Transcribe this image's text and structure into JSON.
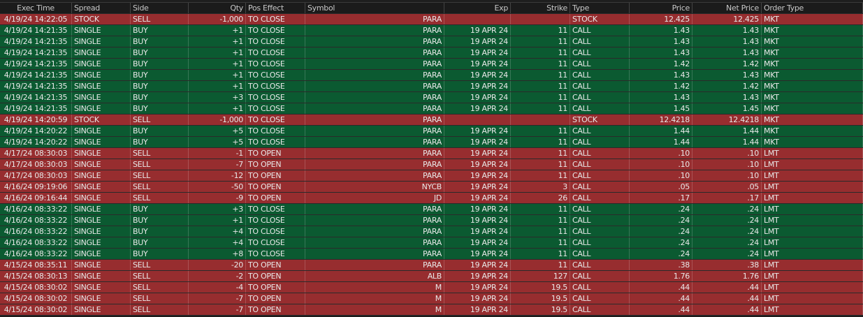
{
  "colors": {
    "sell_row": "#972d2f",
    "buy_row": "#0b5a31",
    "header": "#1b1b1b"
  },
  "columns": [
    "Exec Time",
    "Spread",
    "Side",
    "Qty",
    "Pos Effect",
    "Symbol",
    "Exp",
    "Strike",
    "Type",
    "Price",
    "Net Price",
    "Order Type"
  ],
  "rows": [
    [
      "4/19/24 14:22:05",
      "STOCK",
      "SELL",
      "-1,000",
      "TO CLOSE",
      "PARA",
      "",
      "",
      "STOCK",
      "12.425",
      "12.425",
      "MKT"
    ],
    [
      "4/19/24 14:21:35",
      "SINGLE",
      "BUY",
      "+1",
      "TO CLOSE",
      "PARA",
      "19 APR 24",
      "11",
      "CALL",
      "1.43",
      "1.43",
      "MKT"
    ],
    [
      "4/19/24 14:21:35",
      "SINGLE",
      "BUY",
      "+1",
      "TO CLOSE",
      "PARA",
      "19 APR 24",
      "11",
      "CALL",
      "1.43",
      "1.43",
      "MKT"
    ],
    [
      "4/19/24 14:21:35",
      "SINGLE",
      "BUY",
      "+1",
      "TO CLOSE",
      "PARA",
      "19 APR 24",
      "11",
      "CALL",
      "1.43",
      "1.43",
      "MKT"
    ],
    [
      "4/19/24 14:21:35",
      "SINGLE",
      "BUY",
      "+1",
      "TO CLOSE",
      "PARA",
      "19 APR 24",
      "11",
      "CALL",
      "1.42",
      "1.42",
      "MKT"
    ],
    [
      "4/19/24 14:21:35",
      "SINGLE",
      "BUY",
      "+1",
      "TO CLOSE",
      "PARA",
      "19 APR 24",
      "11",
      "CALL",
      "1.43",
      "1.43",
      "MKT"
    ],
    [
      "4/19/24 14:21:35",
      "SINGLE",
      "BUY",
      "+1",
      "TO CLOSE",
      "PARA",
      "19 APR 24",
      "11",
      "CALL",
      "1.42",
      "1.42",
      "MKT"
    ],
    [
      "4/19/24 14:21:35",
      "SINGLE",
      "BUY",
      "+3",
      "TO CLOSE",
      "PARA",
      "19 APR 24",
      "11",
      "CALL",
      "1.43",
      "1.43",
      "MKT"
    ],
    [
      "4/19/24 14:21:35",
      "SINGLE",
      "BUY",
      "+1",
      "TO CLOSE",
      "PARA",
      "19 APR 24",
      "11",
      "CALL",
      "1.45",
      "1.45",
      "MKT"
    ],
    [
      "4/19/24 14:20:59",
      "STOCK",
      "SELL",
      "-1,000",
      "TO CLOSE",
      "PARA",
      "",
      "",
      "STOCK",
      "12.4218",
      "12.4218",
      "MKT"
    ],
    [
      "4/19/24 14:20:22",
      "SINGLE",
      "BUY",
      "+5",
      "TO CLOSE",
      "PARA",
      "19 APR 24",
      "11",
      "CALL",
      "1.44",
      "1.44",
      "MKT"
    ],
    [
      "4/19/24 14:20:22",
      "SINGLE",
      "BUY",
      "+5",
      "TO CLOSE",
      "PARA",
      "19 APR 24",
      "11",
      "CALL",
      "1.44",
      "1.44",
      "MKT"
    ],
    [
      "4/17/24 08:30:03",
      "SINGLE",
      "SELL",
      "-1",
      "TO OPEN",
      "PARA",
      "19 APR 24",
      "11",
      "CALL",
      ".10",
      ".10",
      "LMT"
    ],
    [
      "4/17/24 08:30:03",
      "SINGLE",
      "SELL",
      "-7",
      "TO OPEN",
      "PARA",
      "19 APR 24",
      "11",
      "CALL",
      ".10",
      ".10",
      "LMT"
    ],
    [
      "4/17/24 08:30:03",
      "SINGLE",
      "SELL",
      "-12",
      "TO OPEN",
      "PARA",
      "19 APR 24",
      "11",
      "CALL",
      ".10",
      ".10",
      "LMT"
    ],
    [
      "4/16/24 09:19:06",
      "SINGLE",
      "SELL",
      "-50",
      "TO OPEN",
      "NYCB",
      "19 APR 24",
      "3",
      "CALL",
      ".05",
      ".05",
      "LMT"
    ],
    [
      "4/16/24 09:16:44",
      "SINGLE",
      "SELL",
      "-9",
      "TO OPEN",
      "JD",
      "19 APR 24",
      "26",
      "CALL",
      ".17",
      ".17",
      "LMT"
    ],
    [
      "4/16/24 08:33:22",
      "SINGLE",
      "BUY",
      "+3",
      "TO CLOSE",
      "PARA",
      "19 APR 24",
      "11",
      "CALL",
      ".24",
      ".24",
      "LMT"
    ],
    [
      "4/16/24 08:33:22",
      "SINGLE",
      "BUY",
      "+1",
      "TO CLOSE",
      "PARA",
      "19 APR 24",
      "11",
      "CALL",
      ".24",
      ".24",
      "LMT"
    ],
    [
      "4/16/24 08:33:22",
      "SINGLE",
      "BUY",
      "+4",
      "TO CLOSE",
      "PARA",
      "19 APR 24",
      "11",
      "CALL",
      ".24",
      ".24",
      "LMT"
    ],
    [
      "4/16/24 08:33:22",
      "SINGLE",
      "BUY",
      "+4",
      "TO CLOSE",
      "PARA",
      "19 APR 24",
      "11",
      "CALL",
      ".24",
      ".24",
      "LMT"
    ],
    [
      "4/16/24 08:33:22",
      "SINGLE",
      "BUY",
      "+8",
      "TO CLOSE",
      "PARA",
      "19 APR 24",
      "11",
      "CALL",
      ".24",
      ".24",
      "LMT"
    ],
    [
      "4/15/24 08:35:11",
      "SINGLE",
      "SELL",
      "-20",
      "TO OPEN",
      "PARA",
      "19 APR 24",
      "11",
      "CALL",
      ".38",
      ".38",
      "LMT"
    ],
    [
      "4/15/24 08:30:13",
      "SINGLE",
      "SELL",
      "-2",
      "TO OPEN",
      "ALB",
      "19 APR 24",
      "127",
      "CALL",
      "1.76",
      "1.76",
      "LMT"
    ],
    [
      "4/15/24 08:30:02",
      "SINGLE",
      "SELL",
      "-4",
      "TO OPEN",
      "M",
      "19 APR 24",
      "19.5",
      "CALL",
      ".44",
      ".44",
      "LMT"
    ],
    [
      "4/15/24 08:30:02",
      "SINGLE",
      "SELL",
      "-7",
      "TO OPEN",
      "M",
      "19 APR 24",
      "19.5",
      "CALL",
      ".44",
      ".44",
      "LMT"
    ],
    [
      "4/15/24 08:30:02",
      "SINGLE",
      "SELL",
      "-7",
      "TO OPEN",
      "M",
      "19 APR 24",
      "19.5",
      "CALL",
      ".44",
      ".44",
      "LMT"
    ]
  ]
}
